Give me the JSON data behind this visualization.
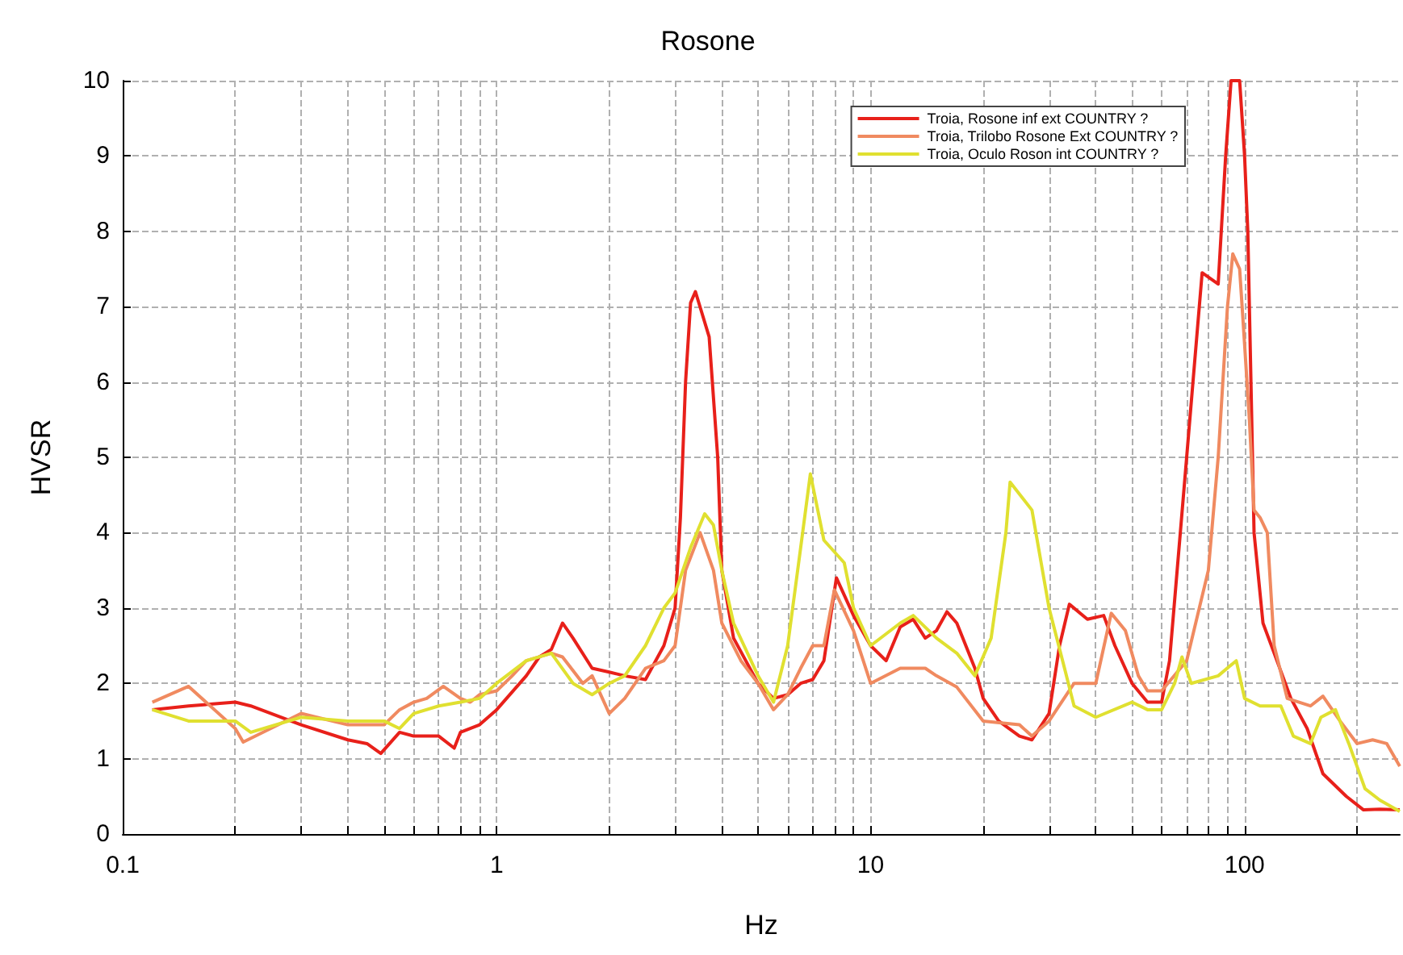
{
  "chart_data": {
    "type": "line",
    "title": "Rosone",
    "xlabel": "Hz",
    "ylabel": "HVSR",
    "log": "x",
    "grid": true,
    "legend": "top right",
    "line_style": "solid",
    "marker": "none",
    "xlim": [
      0.1,
      260
    ],
    "ylim": [
      0,
      10
    ],
    "yticks": [
      0,
      1,
      2,
      3,
      4,
      5,
      6,
      7,
      8,
      9,
      10
    ],
    "xticks": [
      {
        "value": 0.1,
        "label": "0.1"
      },
      {
        "value": 0.2,
        "label": null
      },
      {
        "value": 0.3,
        "label": null
      },
      {
        "value": 0.4,
        "label": null
      },
      {
        "value": 0.5,
        "label": null
      },
      {
        "value": 0.6,
        "label": null
      },
      {
        "value": 0.7,
        "label": null
      },
      {
        "value": 0.8,
        "label": null
      },
      {
        "value": 0.9,
        "label": null
      },
      1,
      {
        "value": 2,
        "label": null
      },
      {
        "value": 3,
        "label": null
      },
      {
        "value": 4,
        "label": null
      },
      {
        "value": 5,
        "label": null
      },
      {
        "value": 6,
        "label": null
      },
      {
        "value": 7,
        "label": null
      },
      {
        "value": 8,
        "label": null
      },
      {
        "value": 9,
        "label": null
      },
      10,
      {
        "value": 20,
        "label": null
      },
      {
        "value": 30,
        "label": null
      },
      {
        "value": 40,
        "label": null
      },
      {
        "value": 50,
        "label": null
      },
      {
        "value": 60,
        "label": null
      },
      {
        "value": 70,
        "label": null
      },
      {
        "value": 80,
        "label": null
      },
      {
        "value": 90,
        "label": null
      },
      100,
      {
        "value": 200,
        "label": null
      }
    ],
    "series": [
      {
        "name": "Troia, Rosone inf ext COUNTRY ?",
        "color": "#e8201a",
        "x": [
          0.12,
          0.15,
          0.2,
          0.22,
          0.3,
          0.4,
          0.45,
          0.49,
          0.55,
          0.6,
          0.7,
          0.77,
          0.8,
          0.9,
          1,
          1.2,
          1.3,
          1.4,
          1.5,
          1.6,
          1.8,
          2,
          2.2,
          2.5,
          2.8,
          3,
          3.1,
          3.2,
          3.3,
          3.4,
          3.7,
          3.9,
          4,
          4.3,
          5,
          5.5,
          6,
          6.5,
          7,
          7.5,
          8.1,
          9,
          10,
          11,
          12,
          13,
          14,
          15,
          16,
          17,
          19,
          20,
          22,
          25,
          27,
          30,
          32,
          34,
          38,
          42,
          45,
          50,
          55,
          60,
          63,
          70,
          77,
          85,
          89,
          92,
          97,
          100,
          102,
          104,
          106,
          112,
          120,
          133,
          147,
          162,
          187,
          208,
          230,
          260
        ],
        "values": [
          1.65,
          1.7,
          1.75,
          1.7,
          1.45,
          1.25,
          1.2,
          1.07,
          1.35,
          1.3,
          1.3,
          1.14,
          1.35,
          1.45,
          1.65,
          2.1,
          2.35,
          2.45,
          2.8,
          2.6,
          2.2,
          2.15,
          2.1,
          2.05,
          2.5,
          3,
          4.2,
          6,
          7.05,
          7.2,
          6.6,
          5,
          3.5,
          2.6,
          2,
          1.8,
          1.85,
          2,
          2.05,
          2.3,
          3.4,
          2.9,
          2.5,
          2.3,
          2.75,
          2.85,
          2.6,
          2.7,
          2.95,
          2.8,
          2.2,
          1.8,
          1.5,
          1.3,
          1.25,
          1.6,
          2.5,
          3.05,
          2.85,
          2.9,
          2.5,
          2,
          1.75,
          1.75,
          2.3,
          5,
          7.45,
          7.3,
          9,
          10,
          10,
          9,
          8,
          6,
          4,
          2.8,
          2.4,
          1.8,
          1.4,
          0.8,
          0.5,
          0.32,
          0.33,
          0.32
        ]
      },
      {
        "name": "Troia, Trilobo Rosone Ext COUNTRY ?",
        "color": "#f08a60",
        "x": [
          0.12,
          0.15,
          0.2,
          0.21,
          0.3,
          0.4,
          0.5,
          0.55,
          0.6,
          0.65,
          0.72,
          0.8,
          0.85,
          0.9,
          1,
          1.1,
          1.2,
          1.4,
          1.5,
          1.7,
          1.8,
          2,
          2.2,
          2.5,
          2.8,
          3,
          3.2,
          3.5,
          3.8,
          4,
          4.5,
          5,
          5.5,
          6,
          6.5,
          7,
          7.5,
          8,
          9,
          10,
          12,
          14,
          15,
          17,
          20,
          25,
          27,
          30,
          35,
          40,
          44,
          48,
          52,
          55,
          60,
          70,
          80,
          85,
          90,
          93,
          97,
          100,
          103,
          106,
          110,
          115,
          120,
          130,
          150,
          162,
          180,
          200,
          220,
          240,
          260
        ],
        "values": [
          1.75,
          1.96,
          1.4,
          1.22,
          1.6,
          1.45,
          1.45,
          1.65,
          1.75,
          1.8,
          1.96,
          1.8,
          1.75,
          1.85,
          1.9,
          2.1,
          2.3,
          2.4,
          2.35,
          2,
          2.1,
          1.6,
          1.8,
          2.2,
          2.3,
          2.5,
          3.5,
          4,
          3.5,
          2.8,
          2.3,
          2,
          1.65,
          1.85,
          2.2,
          2.5,
          2.5,
          3.24,
          2.7,
          2,
          2.2,
          2.2,
          2.1,
          1.95,
          1.5,
          1.45,
          1.3,
          1.5,
          2,
          2,
          2.93,
          2.7,
          2.1,
          1.9,
          1.9,
          2.3,
          3.5,
          5,
          7,
          7.7,
          7.5,
          6.5,
          5.5,
          4.3,
          4.2,
          4,
          2.5,
          1.8,
          1.7,
          1.83,
          1.5,
          1.2,
          1.25,
          1.2,
          0.9
        ]
      },
      {
        "name": "Troia, Oculo Roson int COUNTRY ?",
        "color": "#e0e030",
        "x": [
          0.12,
          0.15,
          0.2,
          0.22,
          0.3,
          0.4,
          0.5,
          0.55,
          0.6,
          0.7,
          0.8,
          0.9,
          1,
          1.2,
          1.4,
          1.6,
          1.8,
          2,
          2.2,
          2.5,
          2.8,
          3,
          3.3,
          3.6,
          3.8,
          4,
          4.3,
          5,
          5.5,
          6,
          6.5,
          6.9,
          7.5,
          8.5,
          9,
          10,
          12,
          13,
          15,
          17,
          19,
          21,
          23,
          23.6,
          27,
          30,
          33,
          35,
          40,
          50,
          55,
          60,
          65,
          68,
          72,
          85,
          95,
          100,
          110,
          125,
          135,
          150,
          160,
          175,
          190,
          210,
          230,
          260
        ],
        "values": [
          1.65,
          1.5,
          1.5,
          1.35,
          1.55,
          1.5,
          1.5,
          1.4,
          1.6,
          1.7,
          1.75,
          1.8,
          2,
          2.3,
          2.4,
          2,
          1.85,
          2,
          2.1,
          2.5,
          3,
          3.2,
          3.8,
          4.25,
          4.1,
          3.5,
          2.8,
          2.1,
          1.75,
          2.5,
          3.8,
          4.78,
          3.9,
          3.6,
          3,
          2.5,
          2.8,
          2.9,
          2.6,
          2.4,
          2.1,
          2.6,
          4,
          4.67,
          4.3,
          3,
          2.2,
          1.7,
          1.55,
          1.75,
          1.65,
          1.65,
          2,
          2.35,
          2,
          2.1,
          2.3,
          1.8,
          1.7,
          1.7,
          1.3,
          1.2,
          1.55,
          1.65,
          1.2,
          0.6,
          0.45,
          0.3
        ]
      }
    ]
  }
}
